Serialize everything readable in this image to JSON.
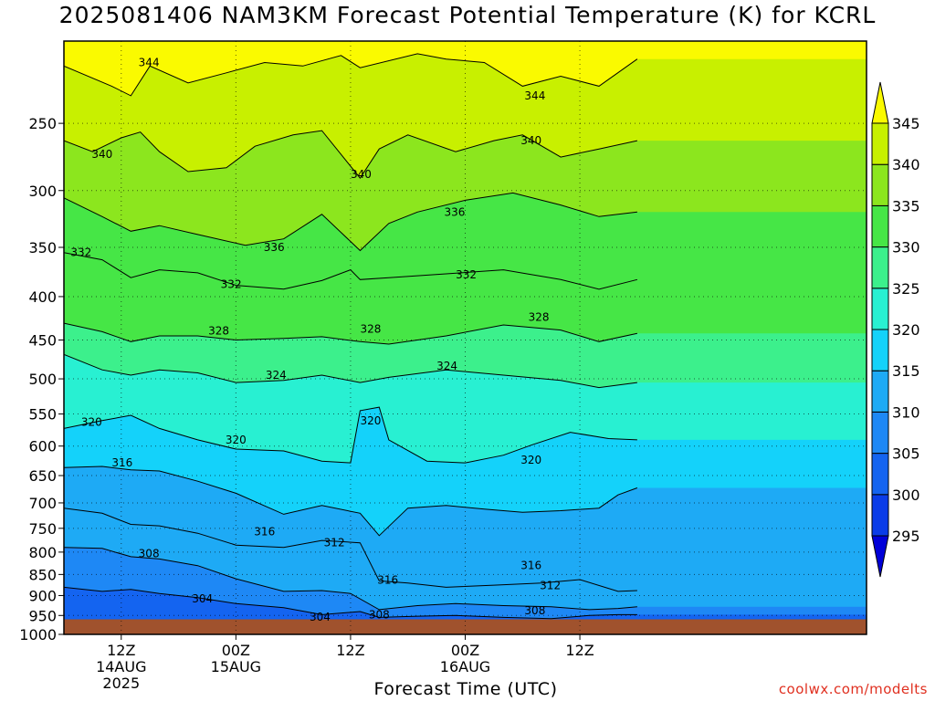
{
  "title": "2025081406 NAM3KM Forecast Potential Temperature (K) for KCRL",
  "credit": "coolwx.com/modelts",
  "chart_data": {
    "type": "heatmap",
    "title": "2025081406 NAM3KM Forecast Potential Temperature (K) for KCRL",
    "xlabel": "Forecast Time (UTC)",
    "ylabel": "",
    "forecast_hours": [
      0,
      84
    ],
    "x_ticks": [
      {
        "hour": 6,
        "lines": [
          "12Z",
          "14AUG",
          "2025"
        ]
      },
      {
        "hour": 18,
        "lines": [
          "00Z",
          "15AUG"
        ]
      },
      {
        "hour": 30,
        "lines": [
          "12Z"
        ]
      },
      {
        "hour": 42,
        "lines": [
          "00Z",
          "16AUG"
        ]
      },
      {
        "hour": 54,
        "lines": [
          "12Z"
        ]
      }
    ],
    "y_axis": {
      "scale": "log",
      "range": [
        1000,
        200
      ],
      "units": "hPa",
      "ticks": [
        250,
        300,
        350,
        400,
        450,
        500,
        550,
        600,
        650,
        700,
        750,
        800,
        850,
        900,
        950,
        1000
      ]
    },
    "surface_pressure": 960,
    "colorbar": {
      "levels": [
        295,
        300,
        305,
        310,
        315,
        320,
        325,
        330,
        335,
        340,
        345
      ],
      "colors": [
        "#0000d8",
        "#0a3ce8",
        "#1464f0",
        "#1e88f5",
        "#1eaaf5",
        "#14d2fa",
        "#28f0d2",
        "#3cf08c",
        "#46e646",
        "#8ce61e",
        "#c8f000",
        "#fafa00"
      ]
    },
    "contour_labels": [
      {
        "value": 344,
        "hour": 8.9,
        "p": 212
      },
      {
        "value": 344,
        "hour": 49.3,
        "p": 232
      },
      {
        "value": 340,
        "hour": 4.0,
        "p": 272
      },
      {
        "value": 340,
        "hour": 31.1,
        "p": 287
      },
      {
        "value": 340,
        "hour": 48.9,
        "p": 262
      },
      {
        "value": 336,
        "hour": 22.0,
        "p": 350
      },
      {
        "value": 336,
        "hour": 40.9,
        "p": 318
      },
      {
        "value": 332,
        "hour": 1.8,
        "p": 355
      },
      {
        "value": 332,
        "hour": 17.5,
        "p": 387
      },
      {
        "value": 332,
        "hour": 42.1,
        "p": 377
      },
      {
        "value": 328,
        "hour": 16.2,
        "p": 439
      },
      {
        "value": 328,
        "hour": 32.1,
        "p": 437
      },
      {
        "value": 328,
        "hour": 49.7,
        "p": 423
      },
      {
        "value": 324,
        "hour": 22.2,
        "p": 495
      },
      {
        "value": 324,
        "hour": 40.1,
        "p": 483
      },
      {
        "value": 320,
        "hour": 2.9,
        "p": 562
      },
      {
        "value": 320,
        "hour": 18.0,
        "p": 590
      },
      {
        "value": 320,
        "hour": 32.1,
        "p": 560
      },
      {
        "value": 320,
        "hour": 48.9,
        "p": 623
      },
      {
        "value": 316,
        "hour": 6.1,
        "p": 628
      },
      {
        "value": 316,
        "hour": 21.0,
        "p": 757
      },
      {
        "value": 316,
        "hour": 33.9,
        "p": 863
      },
      {
        "value": 316,
        "hour": 48.9,
        "p": 830
      },
      {
        "value": 312,
        "hour": 28.3,
        "p": 780
      },
      {
        "value": 312,
        "hour": 50.9,
        "p": 876
      },
      {
        "value": 308,
        "hour": 8.9,
        "p": 803
      },
      {
        "value": 308,
        "hour": 33.0,
        "p": 948
      },
      {
        "value": 308,
        "hour": 49.3,
        "p": 938
      },
      {
        "value": 304,
        "hour": 14.5,
        "p": 908
      },
      {
        "value": 304,
        "hour": 26.8,
        "p": 954
      }
    ],
    "isentropes": [
      {
        "value": 344,
        "points": [
          [
            0,
            214
          ],
          [
            5,
            226
          ],
          [
            7,
            232
          ],
          [
            9,
            214
          ],
          [
            13,
            224
          ],
          [
            17,
            218
          ],
          [
            21,
            212
          ],
          [
            25,
            214
          ],
          [
            29,
            208
          ],
          [
            31,
            215
          ],
          [
            37,
            207
          ],
          [
            40,
            210
          ],
          [
            44,
            212
          ],
          [
            48,
            226
          ],
          [
            52,
            220
          ],
          [
            56,
            226
          ],
          [
            60,
            210
          ]
        ]
      },
      {
        "value": 340,
        "points": [
          [
            0,
            262
          ],
          [
            3,
            270
          ],
          [
            6,
            260
          ],
          [
            8,
            256
          ],
          [
            10,
            270
          ],
          [
            13,
            285
          ],
          [
            17,
            282
          ],
          [
            20,
            266
          ],
          [
            24,
            258
          ],
          [
            27,
            255
          ],
          [
            31,
            290
          ],
          [
            33,
            268
          ],
          [
            36,
            258
          ],
          [
            41,
            270
          ],
          [
            45,
            262
          ],
          [
            48,
            258
          ],
          [
            52,
            274
          ],
          [
            56,
            268
          ],
          [
            60,
            262
          ]
        ]
      },
      {
        "value": 336,
        "points": [
          [
            0,
            306
          ],
          [
            4,
            322
          ],
          [
            7,
            335
          ],
          [
            10,
            330
          ],
          [
            14,
            338
          ],
          [
            19,
            348
          ],
          [
            23,
            342
          ],
          [
            27,
            320
          ],
          [
            31,
            353
          ],
          [
            34,
            328
          ],
          [
            37,
            318
          ],
          [
            42,
            308
          ],
          [
            47,
            302
          ],
          [
            52,
            312
          ],
          [
            56,
            322
          ],
          [
            60,
            318
          ]
        ]
      },
      {
        "value": 332,
        "points": [
          [
            0,
            355
          ],
          [
            4,
            362
          ],
          [
            7,
            380
          ],
          [
            10,
            372
          ],
          [
            14,
            375
          ],
          [
            18,
            388
          ],
          [
            23,
            392
          ],
          [
            27,
            383
          ],
          [
            30,
            372
          ],
          [
            31,
            382
          ],
          [
            34,
            380
          ],
          [
            40,
            376
          ],
          [
            46,
            372
          ],
          [
            52,
            382
          ],
          [
            56,
            392
          ],
          [
            60,
            382
          ]
        ]
      },
      {
        "value": 328,
        "points": [
          [
            0,
            430
          ],
          [
            4,
            440
          ],
          [
            7,
            452
          ],
          [
            10,
            445
          ],
          [
            14,
            445
          ],
          [
            18,
            450
          ],
          [
            23,
            448
          ],
          [
            27,
            446
          ],
          [
            31,
            452
          ],
          [
            34,
            455
          ],
          [
            40,
            445
          ],
          [
            46,
            432
          ],
          [
            52,
            438
          ],
          [
            56,
            452
          ],
          [
            60,
            442
          ]
        ]
      },
      {
        "value": 324,
        "points": [
          [
            0,
            468
          ],
          [
            4,
            488
          ],
          [
            7,
            495
          ],
          [
            10,
            488
          ],
          [
            14,
            492
          ],
          [
            18,
            505
          ],
          [
            23,
            502
          ],
          [
            27,
            495
          ],
          [
            31,
            505
          ],
          [
            34,
            498
          ],
          [
            40,
            488
          ],
          [
            46,
            495
          ],
          [
            52,
            502
          ],
          [
            56,
            512
          ],
          [
            60,
            505
          ]
        ]
      },
      {
        "value": 320,
        "points": [
          [
            0,
            572
          ],
          [
            4,
            560
          ],
          [
            7,
            552
          ],
          [
            10,
            572
          ],
          [
            14,
            590
          ],
          [
            18,
            605
          ],
          [
            23,
            608
          ],
          [
            27,
            625
          ],
          [
            30,
            628
          ],
          [
            31,
            545
          ],
          [
            33,
            540
          ],
          [
            34,
            590
          ],
          [
            38,
            625
          ],
          [
            42,
            628
          ],
          [
            46,
            615
          ],
          [
            49,
            598
          ],
          [
            53,
            578
          ],
          [
            57,
            588
          ],
          [
            60,
            590
          ]
        ]
      },
      {
        "value": 316,
        "points": [
          [
            0,
            636
          ],
          [
            4,
            634
          ],
          [
            7,
            640
          ],
          [
            10,
            642
          ],
          [
            14,
            660
          ],
          [
            18,
            682
          ],
          [
            23,
            722
          ],
          [
            27,
            705
          ],
          [
            31,
            720
          ],
          [
            33,
            765
          ],
          [
            36,
            710
          ],
          [
            40,
            705
          ],
          [
            44,
            712
          ],
          [
            48,
            718
          ],
          [
            52,
            715
          ],
          [
            56,
            710
          ],
          [
            58,
            685
          ],
          [
            60,
            672
          ]
        ]
      },
      {
        "value": 312,
        "points": [
          [
            0,
            710
          ],
          [
            4,
            720
          ],
          [
            7,
            742
          ],
          [
            10,
            745
          ],
          [
            14,
            760
          ],
          [
            18,
            785
          ],
          [
            23,
            790
          ],
          [
            27,
            775
          ],
          [
            31,
            780
          ],
          [
            33,
            865
          ],
          [
            36,
            870
          ],
          [
            40,
            880
          ],
          [
            45,
            875
          ],
          [
            50,
            870
          ],
          [
            54,
            862
          ],
          [
            58,
            890
          ],
          [
            60,
            888
          ]
        ]
      },
      {
        "value": 308,
        "points": [
          [
            0,
            790
          ],
          [
            4,
            792
          ],
          [
            7,
            810
          ],
          [
            10,
            815
          ],
          [
            14,
            830
          ],
          [
            18,
            860
          ],
          [
            23,
            890
          ],
          [
            27,
            888
          ],
          [
            30,
            895
          ],
          [
            33,
            935
          ],
          [
            37,
            925
          ],
          [
            41,
            920
          ],
          [
            46,
            925
          ],
          [
            51,
            928
          ],
          [
            55,
            935
          ],
          [
            58,
            932
          ],
          [
            60,
            928
          ]
        ]
      },
      {
        "value": 304,
        "points": [
          [
            0,
            880
          ],
          [
            4,
            890
          ],
          [
            7,
            885
          ],
          [
            10,
            895
          ],
          [
            14,
            905
          ],
          [
            18,
            920
          ],
          [
            23,
            930
          ],
          [
            27,
            948
          ],
          [
            31,
            940
          ],
          [
            33,
            955
          ],
          [
            37,
            952
          ],
          [
            41,
            950
          ],
          [
            46,
            955
          ],
          [
            51,
            958
          ],
          [
            55,
            950
          ],
          [
            58,
            948
          ],
          [
            60,
            948
          ]
        ]
      }
    ]
  }
}
